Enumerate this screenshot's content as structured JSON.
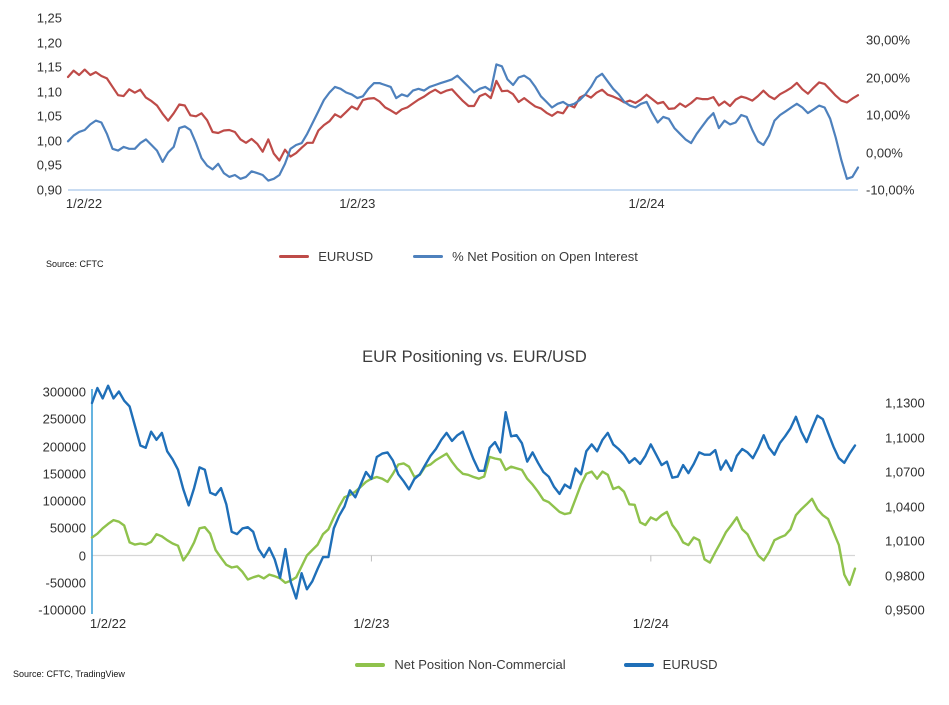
{
  "page": {
    "background": "#ffffff"
  },
  "chart_data": [
    {
      "type": "line",
      "title": "",
      "source": "Source: CFTC",
      "legend_position": "bottom-center",
      "grid": "off",
      "x_tick_labels": [
        "1/2/22",
        "1/2/23",
        "1/2/24"
      ],
      "x_tick_weeks": [
        0,
        52,
        104
      ],
      "left_axis": {
        "min": 0.9,
        "max": 1.25,
        "tick_labels": [
          "1,25",
          "1,20",
          "1,15",
          "1,10",
          "1,05",
          "1,00",
          "0,95",
          "0,90"
        ],
        "tick_values": [
          1.25,
          1.2,
          1.15,
          1.1,
          1.05,
          1.0,
          0.95,
          0.9
        ]
      },
      "right_axis": {
        "min": -10,
        "max": 30,
        "tick_labels": [
          "30,00%",
          "20,00%",
          "10,00%",
          "0,00%",
          "-10,00%"
        ],
        "tick_values": [
          30,
          20,
          10,
          0,
          -10
        ]
      },
      "baseline": {
        "value": 0.9,
        "color": "#A9C7E9"
      },
      "series": [
        {
          "id": "eurusd-top",
          "name": "EURUSD",
          "axis": "left",
          "color": "#BE4B48",
          "values": [
            1.13,
            1.143,
            1.134,
            1.145,
            1.134,
            1.14,
            1.132,
            1.127,
            1.11,
            1.093,
            1.091,
            1.105,
            1.098,
            1.104,
            1.088,
            1.081,
            1.072,
            1.055,
            1.041,
            1.056,
            1.074,
            1.072,
            1.052,
            1.05,
            1.056,
            1.042,
            1.018,
            1.016,
            1.021,
            1.022,
            1.018,
            1.003,
            0.996,
            1.004,
            0.994,
            0.978,
            1.003,
            0.974,
            0.96,
            0.982,
            0.968,
            0.975,
            0.986,
            0.996,
            0.996,
            1.021,
            1.032,
            1.04,
            1.054,
            1.048,
            1.059,
            1.07,
            1.064,
            1.083,
            1.086,
            1.087,
            1.08,
            1.068,
            1.062,
            1.055,
            1.064,
            1.068,
            1.076,
            1.084,
            1.09,
            1.098,
            1.104,
            1.097,
            1.102,
            1.105,
            1.093,
            1.081,
            1.071,
            1.071,
            1.091,
            1.096,
            1.087,
            1.122,
            1.101,
            1.102,
            1.095,
            1.079,
            1.087,
            1.078,
            1.07,
            1.066,
            1.057,
            1.051,
            1.059,
            1.056,
            1.073,
            1.068,
            1.088,
            1.094,
            1.088,
            1.098,
            1.104,
            1.094,
            1.09,
            1.085,
            1.078,
            1.082,
            1.077,
            1.084,
            1.094,
            1.085,
            1.076,
            1.079,
            1.065,
            1.066,
            1.076,
            1.069,
            1.077,
            1.087,
            1.085,
            1.085,
            1.089,
            1.072,
            1.08,
            1.071,
            1.084,
            1.09,
            1.087,
            1.082,
            1.091,
            1.102,
            1.091,
            1.085,
            1.095,
            1.101,
            1.108,
            1.118,
            1.105,
            1.096,
            1.108,
            1.119,
            1.116,
            1.104,
            1.092,
            1.082,
            1.078,
            1.086,
            1.093
          ]
        },
        {
          "id": "net-position-pct-oi",
          "name": "% Net Position on Open Interest",
          "axis": "right",
          "color": "#4E81BD",
          "values": [
            3.0,
            4.5,
            5.5,
            6.0,
            7.5,
            8.5,
            8.0,
            5.0,
            1.0,
            0.5,
            1.5,
            1.0,
            1.0,
            2.5,
            3.5,
            2.0,
            0.5,
            -2.5,
            0.0,
            1.5,
            6.5,
            7.0,
            6.0,
            2.5,
            -1.5,
            -3.5,
            -4.5,
            -3.0,
            -5.5,
            -6.5,
            -6.0,
            -7.0,
            -6.5,
            -5.0,
            -5.5,
            -6.0,
            -7.5,
            -7.0,
            -6.0,
            -3.0,
            1.0,
            2.0,
            2.5,
            5.0,
            8.0,
            11.0,
            14.0,
            16.0,
            17.5,
            17.0,
            16.0,
            15.5,
            14.5,
            15.0,
            17.0,
            18.5,
            18.5,
            18.0,
            17.5,
            14.5,
            15.5,
            15.0,
            16.5,
            17.0,
            16.5,
            17.5,
            18.0,
            18.5,
            19.0,
            19.5,
            20.5,
            19.0,
            17.5,
            16.0,
            17.0,
            17.5,
            16.5,
            23.5,
            23.0,
            19.5,
            18.0,
            20.0,
            20.5,
            19.5,
            17.5,
            15.0,
            13.5,
            12.0,
            13.0,
            13.5,
            12.5,
            13.0,
            14.0,
            15.5,
            17.5,
            20.0,
            21.0,
            19.0,
            17.0,
            15.5,
            13.5,
            12.5,
            12.0,
            13.0,
            13.5,
            10.5,
            8.0,
            9.5,
            9.0,
            6.5,
            5.0,
            3.5,
            2.5,
            5.0,
            7.0,
            9.0,
            10.5,
            6.5,
            8.5,
            7.5,
            8.0,
            10.0,
            9.5,
            6.0,
            3.0,
            2.0,
            4.5,
            8.5,
            10.0,
            11.0,
            12.0,
            13.0,
            12.0,
            10.5,
            11.5,
            12.5,
            12.0,
            9.0,
            4.0,
            -2.0,
            -7.0,
            -6.5,
            -4.0
          ]
        }
      ]
    },
    {
      "type": "line",
      "title": "EUR Positioning vs. EUR/USD",
      "source": "Source: CFTC, TradingView",
      "legend_position": "bottom-center",
      "grid": "off",
      "x_tick_labels": [
        "1/2/22",
        "1/2/23",
        "1/2/24"
      ],
      "x_tick_weeks": [
        0,
        52,
        104
      ],
      "left_axis": {
        "min": -100000,
        "max": 300000,
        "tick_labels": [
          "300000",
          "250000",
          "200000",
          "150000",
          "100000",
          "50000",
          "0",
          "-50000",
          "-100000"
        ],
        "tick_values": [
          300000,
          250000,
          200000,
          150000,
          100000,
          50000,
          0,
          -50000,
          -100000
        ]
      },
      "right_axis": {
        "min": 0.95,
        "max": 1.13,
        "tick_labels": [
          "1,1300",
          "1,1000",
          "1,0700",
          "1,0400",
          "1,0100",
          "0,9800",
          "0,9500"
        ],
        "tick_values": [
          1.13,
          1.1,
          1.07,
          1.04,
          1.01,
          0.98,
          0.95
        ]
      },
      "baseline": {
        "value": 0,
        "color": "#D6D6D6"
      },
      "left_axis_line_color": "#3FA2D9",
      "x_axis_tick_color": "#BFBFBF",
      "series": [
        {
          "id": "net-position-noncommercial",
          "name": "Net Position Non-Commercial",
          "axis": "left",
          "color": "#8FC24C",
          "values": [
            33000,
            40000,
            50000,
            58000,
            65000,
            62000,
            55000,
            24000,
            20000,
            22000,
            20000,
            25000,
            39000,
            35000,
            28000,
            22000,
            18000,
            -9000,
            5000,
            24000,
            50000,
            52000,
            40000,
            10000,
            -4000,
            -17000,
            -22000,
            -20000,
            -30000,
            -44000,
            -40000,
            -37000,
            -42000,
            -35000,
            -38000,
            -42000,
            -50000,
            -46000,
            -40000,
            -20000,
            0,
            10000,
            20000,
            39000,
            48000,
            70000,
            90000,
            107000,
            111000,
            117000,
            126000,
            135000,
            141000,
            144000,
            141000,
            135000,
            150000,
            167000,
            169000,
            163000,
            144000,
            148000,
            163000,
            167000,
            175000,
            181000,
            187000,
            172000,
            159000,
            150000,
            148000,
            144000,
            141000,
            145000,
            181000,
            178000,
            176000,
            157000,
            163000,
            160000,
            157000,
            141000,
            130000,
            117000,
            102000,
            98000,
            89000,
            80000,
            76000,
            78000,
            104000,
            130000,
            150000,
            154000,
            141000,
            154000,
            148000,
            122000,
            126000,
            117000,
            94000,
            93000,
            61000,
            56000,
            70000,
            65000,
            74000,
            80000,
            56000,
            43000,
            24000,
            19000,
            33000,
            28000,
            -7000,
            -13000,
            6000,
            24000,
            43000,
            56000,
            70000,
            48000,
            39000,
            19000,
            0,
            -9000,
            6000,
            28000,
            33000,
            37000,
            48000,
            74000,
            85000,
            94000,
            104000,
            85000,
            74000,
            67000,
            43000,
            19000,
            -35000,
            -54000,
            -24000
          ]
        },
        {
          "id": "eurusd-bottom",
          "name": "EURUSD",
          "axis": "right",
          "color": "#1F6FB8",
          "values": [
            1.13,
            1.143,
            1.134,
            1.145,
            1.134,
            1.14,
            1.132,
            1.127,
            1.11,
            1.093,
            1.091,
            1.105,
            1.098,
            1.104,
            1.088,
            1.081,
            1.072,
            1.055,
            1.041,
            1.056,
            1.074,
            1.072,
            1.052,
            1.05,
            1.056,
            1.042,
            1.018,
            1.016,
            1.021,
            1.022,
            1.018,
            1.003,
            0.996,
            1.004,
            0.994,
            0.978,
            1.003,
            0.974,
            0.96,
            0.982,
            0.968,
            0.975,
            0.986,
            0.996,
            0.996,
            1.021,
            1.032,
            1.04,
            1.054,
            1.048,
            1.059,
            1.07,
            1.064,
            1.083,
            1.086,
            1.087,
            1.08,
            1.068,
            1.062,
            1.055,
            1.064,
            1.068,
            1.076,
            1.084,
            1.09,
            1.098,
            1.104,
            1.097,
            1.102,
            1.105,
            1.093,
            1.081,
            1.071,
            1.071,
            1.091,
            1.096,
            1.087,
            1.122,
            1.101,
            1.102,
            1.095,
            1.079,
            1.087,
            1.078,
            1.07,
            1.066,
            1.057,
            1.051,
            1.059,
            1.056,
            1.073,
            1.068,
            1.088,
            1.094,
            1.088,
            1.098,
            1.104,
            1.094,
            1.09,
            1.085,
            1.078,
            1.082,
            1.077,
            1.084,
            1.094,
            1.085,
            1.076,
            1.079,
            1.065,
            1.066,
            1.076,
            1.069,
            1.077,
            1.087,
            1.085,
            1.085,
            1.089,
            1.072,
            1.08,
            1.071,
            1.084,
            1.09,
            1.087,
            1.082,
            1.091,
            1.102,
            1.091,
            1.085,
            1.095,
            1.101,
            1.108,
            1.118,
            1.105,
            1.096,
            1.108,
            1.119,
            1.116,
            1.104,
            1.092,
            1.082,
            1.078,
            1.086,
            1.093
          ]
        }
      ]
    }
  ]
}
